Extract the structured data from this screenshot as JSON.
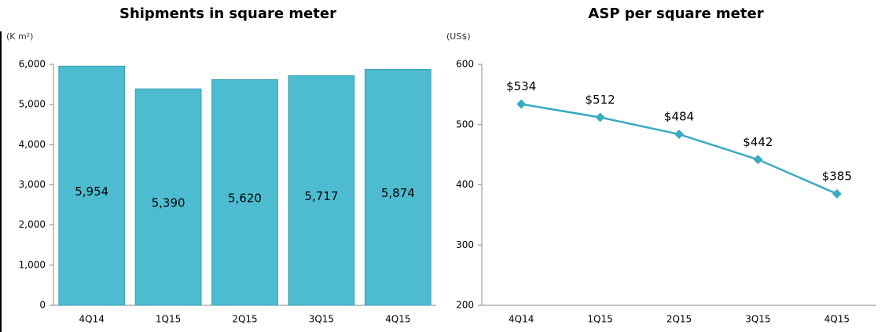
{
  "chart_data": [
    {
      "type": "bar",
      "title": "Shipments in square meter",
      "unit_label": "(K m²)",
      "categories": [
        "4Q14",
        "1Q15",
        "2Q15",
        "3Q15",
        "4Q15"
      ],
      "values": [
        5954,
        5390,
        5620,
        5717,
        5874
      ],
      "value_labels": [
        "5,954",
        "5,390",
        "5,620",
        "5,717",
        "5,874"
      ],
      "color": "#4ebcd0",
      "ylim": [
        0,
        6000
      ],
      "yticks": [
        0,
        {
          "value": 1000,
          "label": "1,000"
        },
        {
          "value": 2000,
          "label": "2,000"
        },
        {
          "value": 3000,
          "label": "3,000"
        },
        {
          "value": 4000,
          "label": "4,000"
        },
        {
          "value": 5000,
          "label": "5,000"
        },
        {
          "value": 6000,
          "label": "6,000"
        }
      ]
    },
    {
      "type": "line",
      "title": "ASP per square meter",
      "unit_label": "(US$)",
      "categories": [
        "4Q14",
        "1Q15",
        "2Q15",
        "3Q15",
        "4Q15"
      ],
      "values": [
        534,
        512,
        484,
        442,
        385
      ],
      "value_labels": [
        "$534",
        "$512",
        "$484",
        "$442",
        "$385"
      ],
      "color": "#3aaabf",
      "ylim": [
        200,
        600
      ],
      "yticks": [
        200,
        300,
        400,
        500,
        600
      ]
    }
  ]
}
